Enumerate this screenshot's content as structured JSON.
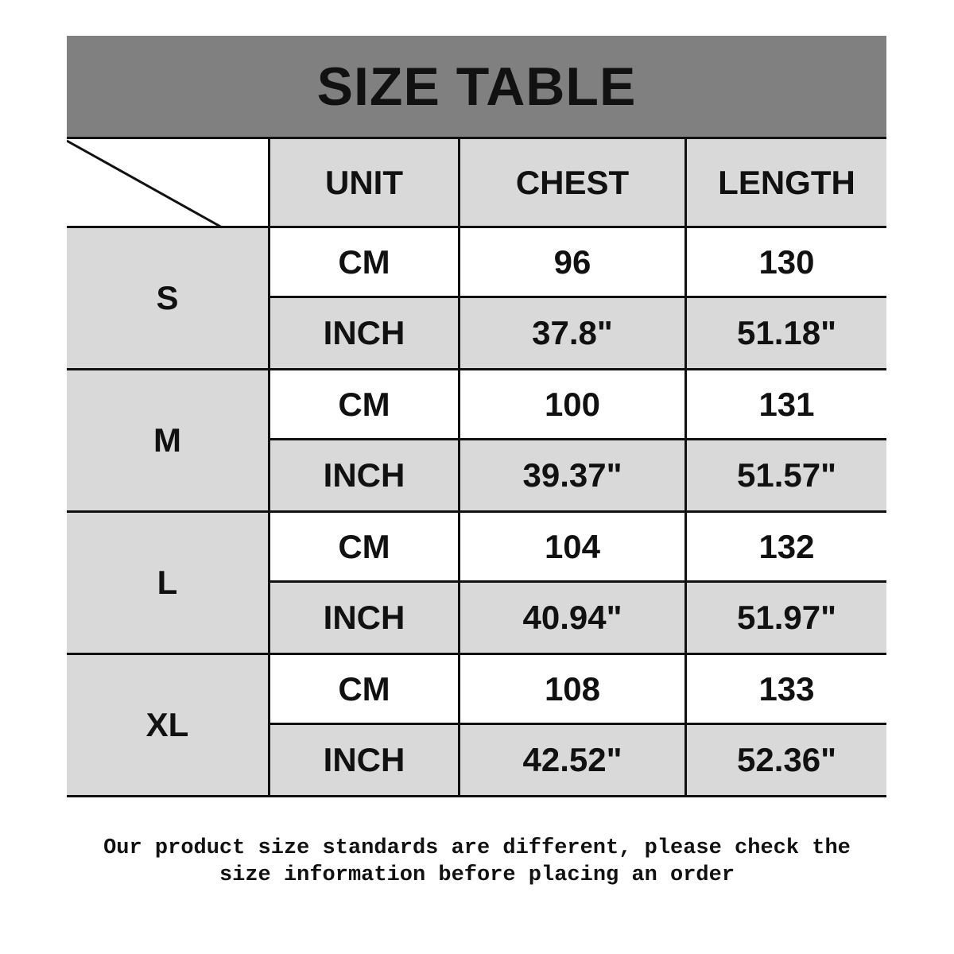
{
  "title": "SIZE TABLE",
  "headers": [
    "UNIT",
    "CHEST",
    "LENGTH"
  ],
  "colors": {
    "title_bg": "#808080",
    "cell_gray": "#d9d9d9",
    "cell_white": "#ffffff",
    "line": "#111111"
  },
  "sizes": [
    {
      "size": "S",
      "rows": [
        {
          "unit": "CM",
          "chest": "96",
          "length": "130"
        },
        {
          "unit": "INCH",
          "chest": "37.8\"",
          "length": "51.18\""
        }
      ]
    },
    {
      "size": "M",
      "rows": [
        {
          "unit": "CM",
          "chest": "100",
          "length": "131"
        },
        {
          "unit": "INCH",
          "chest": "39.37\"",
          "length": "51.57\""
        }
      ]
    },
    {
      "size": "L",
      "rows": [
        {
          "unit": "CM",
          "chest": "104",
          "length": "132"
        },
        {
          "unit": "INCH",
          "chest": "40.94\"",
          "length": "51.97\""
        }
      ]
    },
    {
      "size": "XL",
      "rows": [
        {
          "unit": "CM",
          "chest": "108",
          "length": "133"
        },
        {
          "unit": "INCH",
          "chest": "42.52\"",
          "length": "52.36\""
        }
      ]
    }
  ],
  "note": {
    "line1": "Our product size standards are different, please check the",
    "line2": "size information before placing an order"
  }
}
